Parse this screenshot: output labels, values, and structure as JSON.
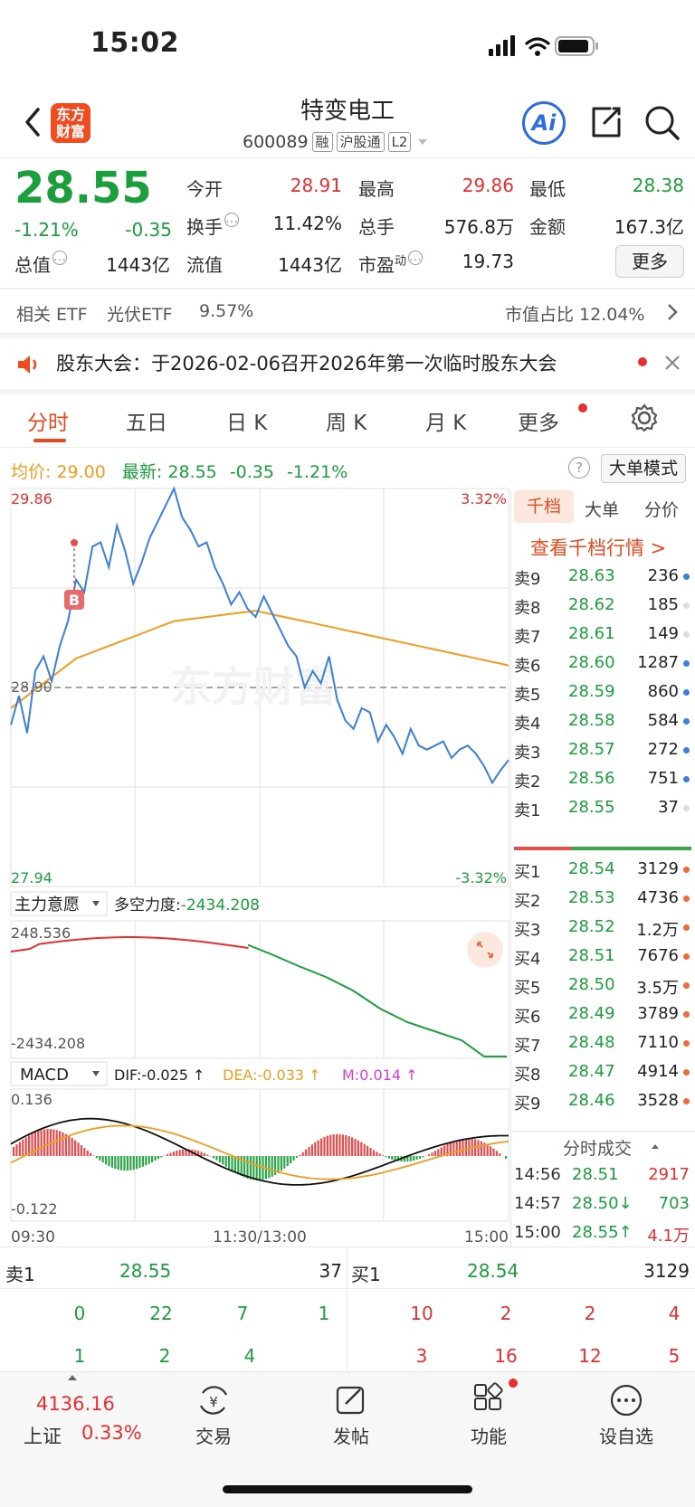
{
  "status_bar": {
    "time": "15:02"
  },
  "header": {
    "logo_text_1": "东方",
    "logo_text_2": "财富",
    "name": "特变电工",
    "code": "600089",
    "tags": [
      "融",
      "沪股通",
      "L2"
    ],
    "ai_label": "Ai"
  },
  "quote": {
    "price": "28.55",
    "change_pct": "-1.21%",
    "change": "-0.35",
    "open_label": "今开",
    "open": "28.91",
    "high_label": "最高",
    "high": "29.86",
    "low_label": "最低",
    "low": "28.38",
    "turnover_label": "换手",
    "turnover": "11.42%",
    "volume_label": "总手",
    "volume": "576.8万",
    "amount_label": "金额",
    "amount": "167.3亿",
    "mktcap_label": "总值",
    "mktcap": "1443亿",
    "float_label": "流值",
    "float": "1443亿",
    "pe_label": "市盈",
    "pe_sup": "动",
    "pe": "19.73",
    "more_label": "更多"
  },
  "etf": {
    "related_label": "相关 ETF",
    "name": "光伏ETF",
    "pct": "9.57%",
    "share_label": "市值占比 12.04%"
  },
  "notice": {
    "text": "股东大会：于2026-02-06召开2026年第一次临时股东大会"
  },
  "tabs": [
    "分时",
    "五日",
    "日 K",
    "周 K",
    "月 K",
    "更多"
  ],
  "chart_info": {
    "avg_label": "均价:",
    "avg": "29.00",
    "latest_label": "最新:",
    "latest": "28.55",
    "latest_chg": "-0.35",
    "latest_pct": "-1.21%",
    "big_order_mode": "大单模式",
    "y_top": "29.86",
    "y_mid": "28.90",
    "y_bottom": "27.94",
    "pct_top": "3.32%",
    "pct_bottom": "-3.32%",
    "buy_marker": "B",
    "watermark": "东方财富"
  },
  "indicator1": {
    "name": "主力意愿",
    "power_label": "多空力度:",
    "power": "-2434.208",
    "top": "248.536",
    "bottom": "-2434.208"
  },
  "macd": {
    "name": "MACD",
    "dif": "DIF:-0.025 ↑",
    "dea": "DEA:-0.033 ↑",
    "m": "M:0.014 ↑",
    "top": "0.136",
    "bottom": "-0.122",
    "time_start": "09:30",
    "time_mid": "11:30/13:00",
    "time_end": "15:00"
  },
  "orderbook_tabs": [
    "千档",
    "大单",
    "分价"
  ],
  "orderbook_link": "查看千档行情 >",
  "asks": [
    {
      "label": "卖9",
      "price": "28.63",
      "vol": "236"
    },
    {
      "label": "卖8",
      "price": "28.62",
      "vol": "185"
    },
    {
      "label": "卖7",
      "price": "28.61",
      "vol": "149"
    },
    {
      "label": "卖6",
      "price": "28.60",
      "vol": "1287"
    },
    {
      "label": "卖5",
      "price": "28.59",
      "vol": "860"
    },
    {
      "label": "卖4",
      "price": "28.58",
      "vol": "584"
    },
    {
      "label": "卖3",
      "price": "28.57",
      "vol": "272"
    },
    {
      "label": "卖2",
      "price": "28.56",
      "vol": "751"
    },
    {
      "label": "卖1",
      "price": "28.55",
      "vol": "37"
    }
  ],
  "bids": [
    {
      "label": "买1",
      "price": "28.54",
      "vol": "3129"
    },
    {
      "label": "买2",
      "price": "28.53",
      "vol": "4736"
    },
    {
      "label": "买3",
      "price": "28.52",
      "vol": "1.2万"
    },
    {
      "label": "买4",
      "price": "28.51",
      "vol": "7676"
    },
    {
      "label": "买5",
      "price": "28.50",
      "vol": "3.5万"
    },
    {
      "label": "买6",
      "price": "28.49",
      "vol": "3789"
    },
    {
      "label": "买7",
      "price": "28.48",
      "vol": "7110"
    },
    {
      "label": "买8",
      "price": "28.47",
      "vol": "4914"
    },
    {
      "label": "买9",
      "price": "28.46",
      "vol": "3528"
    }
  ],
  "ticks_title": "分时成交",
  "ticks": [
    {
      "time": "14:56",
      "price": "28.51",
      "vol": "2917"
    },
    {
      "time": "14:57",
      "price": "28.50↓",
      "vol": "703"
    },
    {
      "time": "15:00",
      "price": "28.55↑",
      "vol": "4.1万"
    }
  ],
  "bottom_book": {
    "ask_label": "卖1",
    "ask_price": "28.55",
    "ask_vol": "37",
    "bid_label": "买1",
    "bid_price": "28.54",
    "bid_vol": "3129",
    "ask_queue_1": [
      "0",
      "22",
      "7",
      "1"
    ],
    "ask_queue_2": [
      "1",
      "2",
      "4"
    ],
    "bid_queue_1": [
      "10",
      "2",
      "2",
      "4"
    ],
    "bid_queue_2": [
      "3",
      "16",
      "12",
      "5"
    ]
  },
  "bottom_nav": {
    "index_value": "4136.16",
    "index_name": "上证",
    "index_pct": "0.33%",
    "trade": "交易",
    "post": "发帖",
    "functions": "功能",
    "watchlist": "设自选"
  }
}
